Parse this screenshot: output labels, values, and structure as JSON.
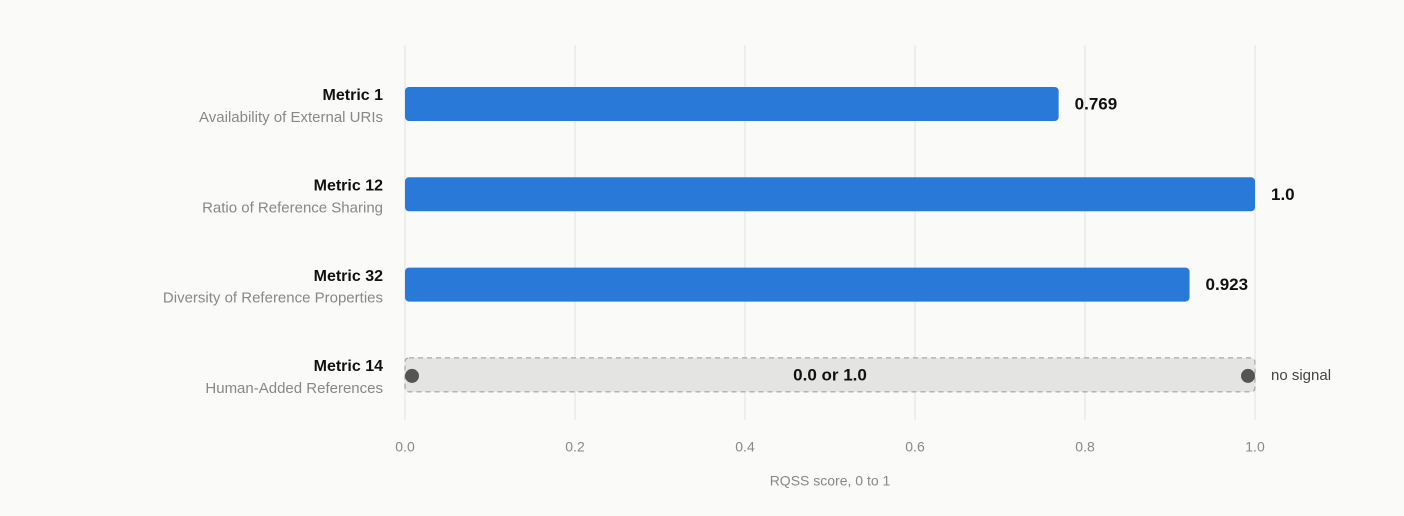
{
  "chart_data": {
    "type": "bar",
    "orientation": "horizontal",
    "categories": [
      "Metric 1",
      "Metric 12",
      "Metric 32"
    ],
    "descriptions": [
      "Availability of External URIs",
      "Ratio of Reference Sharing",
      "Diversity of Reference Properties"
    ],
    "values": [
      0.769,
      1,
      0.923
    ],
    "value_labels": [
      "0.769",
      "1.0",
      "0.923"
    ],
    "color": "#2979d9",
    "binary_row": {
      "category": "Metric 14",
      "description": "Human-Added References",
      "values": [
        0,
        1
      ],
      "label": "0.0 or 1.0",
      "note": "no signal",
      "color": "#e4e4e2"
    },
    "xlim": [
      0,
      1
    ],
    "xticks": [
      {
        "value": 0,
        "label": "0.0"
      },
      0.2,
      0.4,
      0.6,
      0.8,
      {
        "value": 1,
        "label": "1.0"
      }
    ],
    "xlabel": "RQSS score, 0 to 1",
    "grid": true
  }
}
